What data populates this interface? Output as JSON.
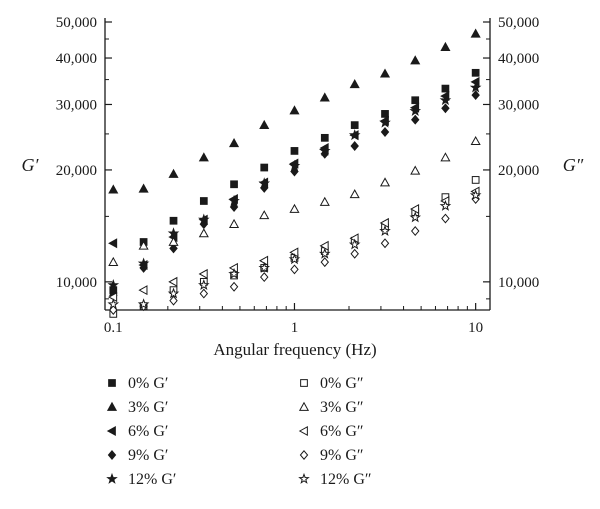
{
  "chart_data": {
    "type": "scatter",
    "xscale": "log",
    "yscale": "log",
    "xlabel": "Angular frequency (Hz)",
    "ylabel_left": "G′",
    "ylabel_right": "G″",
    "xlim": [
      0.09,
      12
    ],
    "ylim": [
      8400,
      50000
    ],
    "x_ticks": [
      {
        "value": 0.1,
        "label": "0.1"
      },
      {
        "value": 1,
        "label": "1"
      },
      {
        "value": 10,
        "label": "10"
      }
    ],
    "y_ticks": [
      {
        "value": 10000,
        "label": "10,000"
      },
      {
        "value": 20000,
        "label": "20,000"
      },
      {
        "value": 30000,
        "label": "30,000"
      },
      {
        "value": 40000,
        "label": "40,000"
      },
      {
        "value": 50000,
        "label": "50,000"
      }
    ],
    "x": [
      0.1,
      0.147,
      0.215,
      0.316,
      0.464,
      0.681,
      1.0,
      1.47,
      2.15,
      3.16,
      4.64,
      6.81,
      10.0
    ],
    "series": [
      {
        "name": "0% G′",
        "marker": "square",
        "fill": "filled",
        "values": [
          9500,
          12800,
          14600,
          16500,
          18300,
          20300,
          22500,
          24400,
          26400,
          28300,
          30800,
          33100,
          36500
        ]
      },
      {
        "name": "3% G′",
        "marker": "triangle-up",
        "fill": "filled",
        "values": [
          17700,
          17800,
          19500,
          21600,
          23600,
          26400,
          28900,
          31300,
          34000,
          36300,
          39400,
          42800,
          46500
        ]
      },
      {
        "name": "6% G′",
        "marker": "triangle-left",
        "fill": "filled",
        "values": [
          12700,
          11100,
          13200,
          14700,
          16700,
          18500,
          20800,
          22900,
          24800,
          27100,
          29400,
          31600,
          34500
        ]
      },
      {
        "name": "9% G′",
        "marker": "diamond",
        "fill": "filled",
        "values": [
          9200,
          10900,
          12300,
          14300,
          15900,
          17900,
          19800,
          22100,
          23200,
          25300,
          27300,
          29300,
          31800
        ]
      },
      {
        "name": "12% G′",
        "marker": "star",
        "fill": "filled",
        "values": [
          9800,
          11200,
          13500,
          14700,
          16500,
          18400,
          20500,
          22500,
          24800,
          26800,
          28800,
          30800,
          33300
        ]
      },
      {
        "name": "0% G″",
        "marker": "square",
        "fill": "open",
        "values": [
          8200,
          8600,
          9500,
          10000,
          10400,
          10900,
          11600,
          12100,
          12900,
          14000,
          15400,
          16900,
          18800
        ]
      },
      {
        "name": "3% G″",
        "marker": "triangle-up",
        "fill": "open",
        "values": [
          11300,
          12500,
          12800,
          13500,
          14300,
          15100,
          15700,
          16400,
          17200,
          18500,
          19900,
          21600,
          23900
        ]
      },
      {
        "name": "6% G″",
        "marker": "triangle-left",
        "fill": "open",
        "values": [
          9100,
          9500,
          10000,
          10500,
          10900,
          11400,
          12000,
          12500,
          13100,
          14400,
          15700,
          16500,
          17500
        ]
      },
      {
        "name": "9% G″",
        "marker": "diamond",
        "fill": "open",
        "values": [
          8400,
          8600,
          8900,
          9300,
          9700,
          10300,
          10800,
          11300,
          11900,
          12700,
          13700,
          14800,
          16700
        ]
      },
      {
        "name": "12% G″",
        "marker": "star",
        "fill": "open",
        "values": [
          8700,
          8700,
          9300,
          9800,
          10500,
          10900,
          11500,
          11900,
          12600,
          13700,
          14900,
          16000,
          17100
        ]
      }
    ],
    "legend": {
      "position": "bottom",
      "columns": 2
    },
    "grid": false,
    "colors": {
      "ink": "#1a1a1a",
      "background": "#ffffff"
    }
  }
}
